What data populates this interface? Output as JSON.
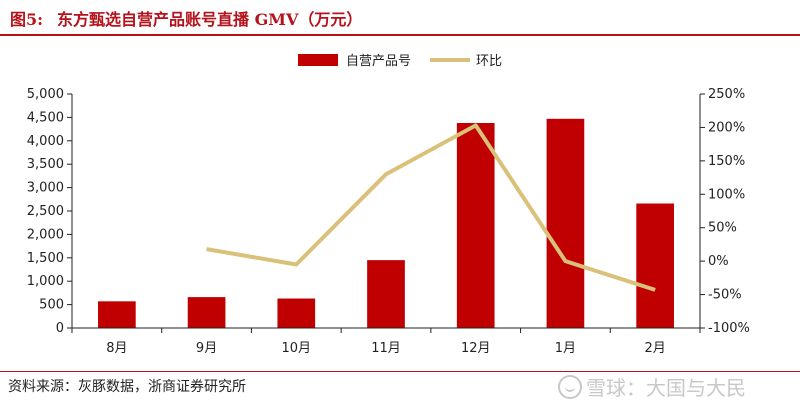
{
  "figure": {
    "number": "图5:",
    "title": "东方甄选自营产品账号直播 GMV（万元）",
    "source": "资料来源：灰豚数据，浙商证券研究所",
    "watermark": "雪球：大国与大民"
  },
  "colors": {
    "bar": "#c00000",
    "line": "#d9c17a",
    "accent": "#b5121b"
  },
  "chart_data": {
    "type": "bar",
    "categories": [
      "8月",
      "9月",
      "10月",
      "11月",
      "12月",
      "1月",
      "2月"
    ],
    "series": [
      {
        "name": "自营产品号",
        "type": "bar",
        "axis": "left",
        "values": [
          570,
          660,
          630,
          1450,
          4380,
          4470,
          2660
        ]
      },
      {
        "name": "环比",
        "type": "line",
        "axis": "right",
        "values": [
          null,
          18,
          -5,
          130,
          203,
          0,
          -43
        ]
      }
    ],
    "y_left": {
      "min": 0,
      "max": 5000,
      "ticks": [
        "0",
        "500",
        "1,000",
        "1,500",
        "2,000",
        "2,500",
        "3,000",
        "3,500",
        "4,000",
        "4,500",
        "5,000"
      ]
    },
    "y_right": {
      "min": -100,
      "max": 250,
      "ticks": [
        "-100%",
        "-50%",
        "0%",
        "50%",
        "100%",
        "150%",
        "200%",
        "250%"
      ]
    },
    "grid": false,
    "legend_position": "top-right"
  }
}
